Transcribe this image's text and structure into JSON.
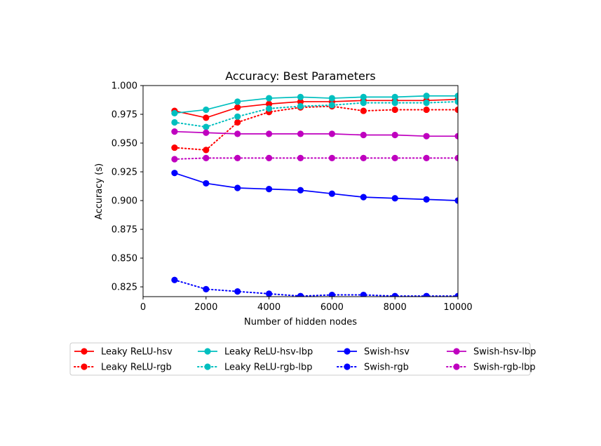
{
  "chart_data": {
    "type": "line",
    "title": "Accuracy: Best Parameters",
    "xlabel": "Number of hidden nodes",
    "ylabel": "Accuracy (s)",
    "xlim": [
      0,
      10000
    ],
    "ylim": [
      0.8165,
      1.0
    ],
    "xticks": [
      0,
      2000,
      4000,
      6000,
      8000,
      10000
    ],
    "xtick_labels": [
      "0",
      "2000",
      "4000",
      "6000",
      "8000",
      "10000"
    ],
    "yticks": [
      0.825,
      0.85,
      0.875,
      0.9,
      0.925,
      0.95,
      0.975,
      1.0
    ],
    "ytick_labels": [
      "0.825",
      "0.850",
      "0.875",
      "0.900",
      "0.925",
      "0.950",
      "0.975",
      "1.000"
    ],
    "grid": false,
    "legend_placement": "below",
    "x": [
      1000,
      2000,
      3000,
      4000,
      5000,
      6000,
      7000,
      8000,
      9000,
      10000
    ],
    "series": [
      {
        "name": "Leaky ReLU-hsv",
        "color": "#ff0000",
        "style": "solid",
        "values": [
          0.978,
          0.972,
          0.981,
          0.984,
          0.986,
          0.986,
          0.987,
          0.987,
          0.987,
          0.988
        ]
      },
      {
        "name": "Leaky ReLU-rgb",
        "color": "#ff0000",
        "style": "dotted",
        "values": [
          0.946,
          0.944,
          0.968,
          0.977,
          0.981,
          0.982,
          0.978,
          0.979,
          0.979,
          0.979
        ]
      },
      {
        "name": "Leaky ReLU-hsv-lbp",
        "color": "#00bfbf",
        "style": "solid",
        "values": [
          0.976,
          0.979,
          0.986,
          0.989,
          0.99,
          0.989,
          0.99,
          0.99,
          0.991,
          0.991
        ]
      },
      {
        "name": "Leaky ReLU-rgb-lbp",
        "color": "#00bfbf",
        "style": "dotted",
        "values": [
          0.968,
          0.964,
          0.973,
          0.98,
          0.982,
          0.983,
          0.985,
          0.985,
          0.985,
          0.986
        ]
      },
      {
        "name": "Swish-hsv",
        "color": "#0000ff",
        "style": "solid",
        "values": [
          0.924,
          0.915,
          0.911,
          0.91,
          0.909,
          0.906,
          0.903,
          0.902,
          0.901,
          0.9
        ]
      },
      {
        "name": "Swish-rgb",
        "color": "#0000ff",
        "style": "dotted",
        "values": [
          0.831,
          0.823,
          0.821,
          0.819,
          0.817,
          0.818,
          0.818,
          0.817,
          0.817,
          0.817
        ]
      },
      {
        "name": "Swish-hsv-lbp",
        "color": "#bf00bf",
        "style": "solid",
        "values": [
          0.96,
          0.959,
          0.958,
          0.958,
          0.958,
          0.958,
          0.957,
          0.957,
          0.956,
          0.956
        ]
      },
      {
        "name": "Swish-rgb-lbp",
        "color": "#bf00bf",
        "style": "dotted",
        "values": [
          0.936,
          0.937,
          0.937,
          0.937,
          0.937,
          0.937,
          0.937,
          0.937,
          0.937,
          0.937
        ]
      }
    ]
  }
}
